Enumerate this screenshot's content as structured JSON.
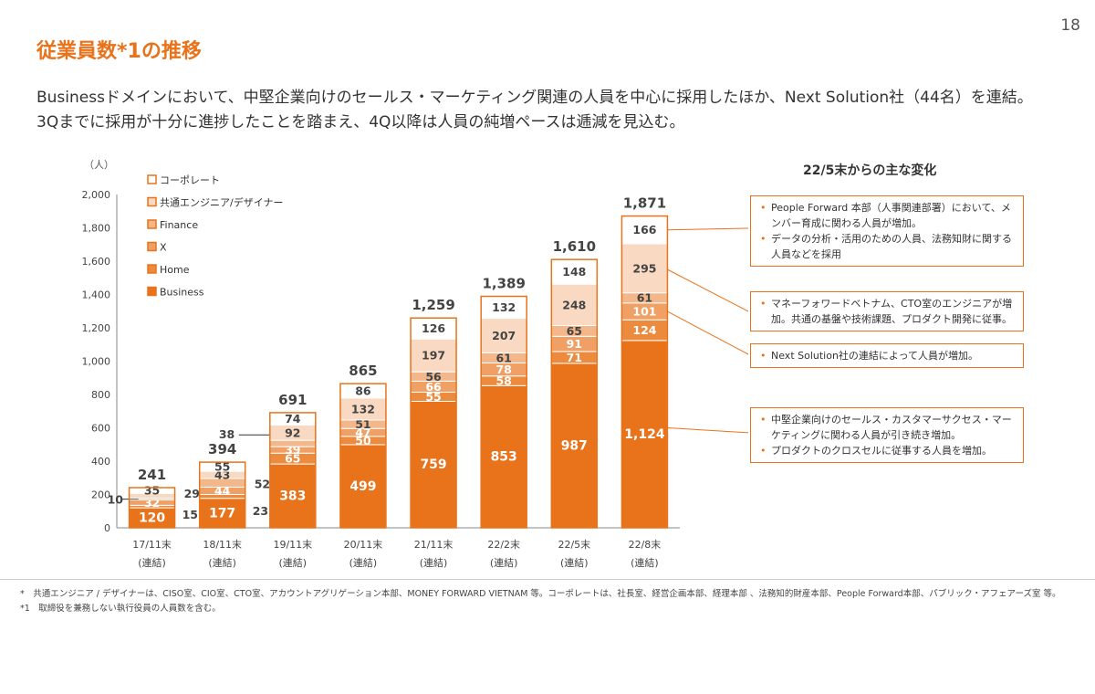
{
  "page_number": "18",
  "title": "従業員数*1の推移",
  "subtitle_line1": "Businessドメインにおいて、中堅企業向けのセールス・マーケティング関連の人員を中心に採用したほか、Next Solution社（44名）を連結。",
  "subtitle_line2": "3Qまでに採用が十分に進捗したことを踏まえ、4Q以降は人員の純増ペースは逓減を見込む。",
  "callout_title": "22/5末からの主な変化",
  "callouts": [
    {
      "items": [
        "People Forward 本部（人事関連部署）において、メンバー育成に関わる人員が増加。",
        "データの分析・活用のための人員、法務知財に関する人員などを採用"
      ]
    },
    {
      "items": [
        "マネーフォワードベトナム、CTO室のエンジニアが増加。共通の基盤や技術課題、プロダクト開発に従事。"
      ]
    },
    {
      "items": [
        "Next Solution社の連結によって人員が増加。"
      ]
    },
    {
      "items": [
        "中堅企業向けのセールス・カスタマーサクセス・マーケティングに関わる人員が引き続き増加。",
        "プロダクトのクロスセルに従事する人員を増加。"
      ]
    }
  ],
  "footnote1": "*　共通エンジニア / デザイナーは、CISO室、CIO室、CTO室、アカウントアグリゲーション本部、MONEY FORWARD VIETNAM 等。コーポレートは、社長室、経営企画本部、経理本部 、法務知的財産本部、People Forward本部、パブリック・アフェアーズ室 等。",
  "footnote2": "*1　取締役を兼務しない執行役員の人員数を含む。",
  "colors": {
    "accent": "#e8731a",
    "business": "#e8731a",
    "home": "#ec8a3e",
    "x": "#f0a064",
    "finance": "#f4b78a",
    "common": "#f9d9c2",
    "corporate": "#ffffff"
  },
  "chart_data": {
    "type": "bar",
    "stacked": true,
    "unit_label": "（人）",
    "ylim": [
      0,
      2000
    ],
    "y_ticks": [
      "0",
      "200",
      "400",
      "600",
      "800",
      "1,000",
      "1,200",
      "1,400",
      "1,600",
      "1,800",
      "2,000"
    ],
    "categories": [
      [
        "17/11末",
        "(連結)"
      ],
      [
        "18/11末",
        "(連結)"
      ],
      [
        "19/11末",
        "(連結)"
      ],
      [
        "20/11末",
        "(連結)"
      ],
      [
        "21/11末",
        "(連結)"
      ],
      [
        "22/2末",
        "(連結)"
      ],
      [
        "22/5末",
        "(連結)"
      ],
      [
        "22/8末",
        "(連結)"
      ]
    ],
    "totals": [
      "241",
      "394",
      "691",
      "865",
      "1,259",
      "1,389",
      "1,610",
      "1,871"
    ],
    "series": [
      {
        "name": "Business",
        "key": "business",
        "values": [
          120,
          177,
          383,
          499,
          759,
          853,
          987,
          1124
        ],
        "labels": [
          "120",
          "177",
          "383",
          "499",
          "759",
          "853",
          "987",
          "1,124"
        ]
      },
      {
        "name": "Home",
        "key": "home",
        "values": [
          15,
          23,
          65,
          50,
          55,
          58,
          71,
          124
        ],
        "labels": [
          "15",
          "23",
          "65",
          "50",
          "55",
          "58",
          "71",
          "124"
        ]
      },
      {
        "name": "X",
        "key": "x",
        "values": [
          32,
          44,
          39,
          47,
          66,
          78,
          91,
          101
        ],
        "labels": [
          "32",
          "44",
          "39",
          "47",
          "66",
          "78",
          "91",
          "101"
        ]
      },
      {
        "name": "Finance",
        "key": "finance",
        "values": [
          10,
          52,
          38,
          51,
          56,
          61,
          65,
          61
        ],
        "labels": [
          "10",
          "52",
          "38",
          "51",
          "56",
          "61",
          "65",
          "61"
        ]
      },
      {
        "name": "共通エンジニア/デザイナー",
        "key": "common",
        "values": [
          29,
          43,
          92,
          132,
          197,
          207,
          248,
          295
        ],
        "labels": [
          "29",
          "43",
          "92",
          "132",
          "197",
          "207",
          "248",
          "295"
        ]
      },
      {
        "name": "コーポレート",
        "key": "corporate",
        "values": [
          35,
          55,
          74,
          86,
          126,
          132,
          148,
          166
        ],
        "labels": [
          "35",
          "55",
          "74",
          "86",
          "126",
          "132",
          "148",
          "166"
        ]
      }
    ],
    "legend": [
      "コーポレート",
      "共通エンジニア/デザイナー",
      "Finance",
      "X",
      "Home",
      "Business"
    ]
  }
}
